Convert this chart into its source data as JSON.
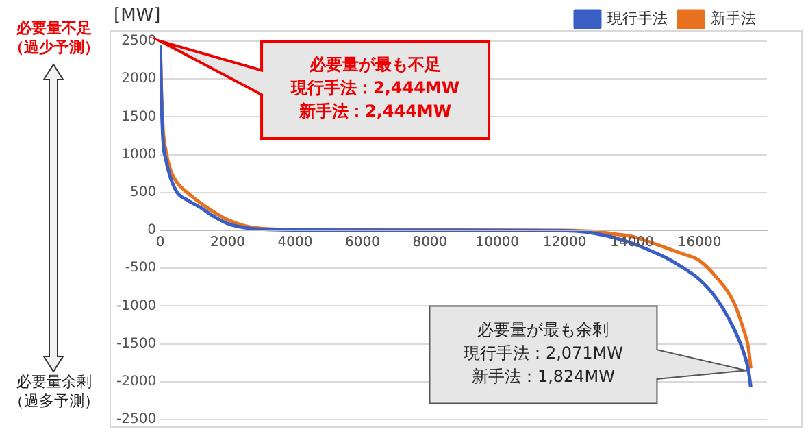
{
  "chart_data": {
    "type": "line",
    "ylabel": "[MW]",
    "xlim": [
      0,
      18000
    ],
    "xticks": [
      0,
      2000,
      4000,
      6000,
      8000,
      10000,
      12000,
      14000,
      16000
    ],
    "ylim": [
      -2500,
      2500
    ],
    "yticks": [
      -2500,
      -2000,
      -1500,
      -1000,
      -500,
      0,
      500,
      1000,
      1500,
      2000,
      2500
    ],
    "grid": "y",
    "legend": "top right",
    "marker": "none",
    "series": [
      {
        "name": "現行手法",
        "color": "#3a5fc4",
        "x": [
          0,
          30,
          80,
          165,
          300,
          500,
          800,
          1200,
          1600,
          2000,
          2500,
          3000,
          4000,
          8000,
          12000,
          12600,
          13000,
          13500,
          14000,
          14500,
          15000,
          15500,
          16000,
          16500,
          17000,
          17300,
          17450,
          17520
        ],
        "values": [
          2444,
          1800,
          1200,
          935,
          700,
          500,
          400,
          300,
          180,
          90,
          35,
          15,
          5,
          0,
          -5,
          -20,
          -50,
          -100,
          -170,
          -260,
          -360,
          -490,
          -650,
          -900,
          -1280,
          -1600,
          -1850,
          -2071
        ]
      },
      {
        "name": "新手法",
        "color": "#e8711f",
        "x": [
          0,
          30,
          80,
          165,
          300,
          500,
          800,
          1200,
          1600,
          2000,
          2500,
          3000,
          4000,
          8000,
          12000,
          13000,
          13500,
          14000,
          14500,
          15000,
          15500,
          16000,
          16500,
          17000,
          17300,
          17450,
          17520
        ],
        "values": [
          2444,
          1900,
          1350,
          1050,
          800,
          630,
          500,
          360,
          240,
          140,
          60,
          25,
          10,
          5,
          0,
          -20,
          -50,
          -80,
          -150,
          -230,
          -310,
          -400,
          -620,
          -935,
          -1300,
          -1550,
          -1824
        ]
      }
    ],
    "annotations": [
      "必要量が最も不足",
      "現行手法：2,444MW",
      "新手法：2,444MW",
      "必要量が最も余剰",
      "現行手法：2,071MW",
      "新手法：1,824MW",
      "必要量不足（過少予測）",
      "必要量余剰（過多予測）"
    ]
  }
}
